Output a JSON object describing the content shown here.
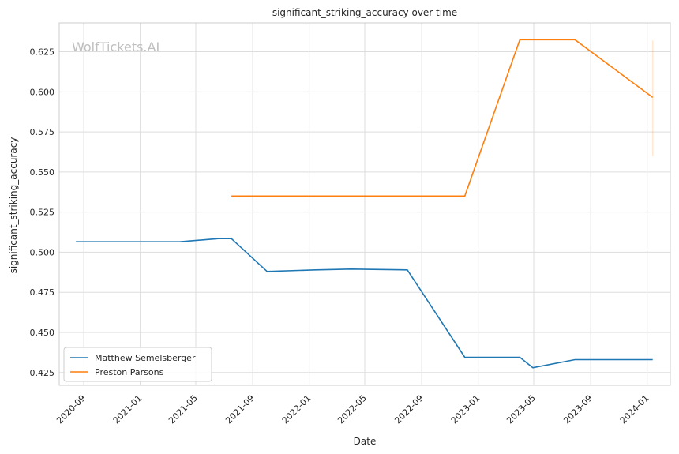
{
  "watermark": "WolfTickets.AI",
  "chart_data": {
    "type": "line",
    "title": "significant_striking_accuracy over time",
    "xlabel": "Date",
    "ylabel": "significant_striking_accuracy",
    "x_range": [
      "2020-07-10",
      "2024-02-20"
    ],
    "ylim": [
      0.417,
      0.643
    ],
    "x_ticks": [
      "2020-09",
      "2021-01",
      "2021-05",
      "2021-09",
      "2022-01",
      "2022-05",
      "2022-09",
      "2023-01",
      "2023-05",
      "2023-09",
      "2024-01"
    ],
    "y_ticks": [
      0.425,
      0.45,
      0.475,
      0.5,
      0.525,
      0.55,
      0.575,
      0.6,
      0.625
    ],
    "y_tick_labels": [
      "0.425",
      "0.450",
      "0.475",
      "0.500",
      "0.525",
      "0.550",
      "0.575",
      "0.600",
      "0.625"
    ],
    "grid": true,
    "legend_position": "bottom-left",
    "series": [
      {
        "name": "Matthew Semelsberger",
        "color": "#1f77b4",
        "points": [
          [
            "2020-08-15",
            0.5065
          ],
          [
            "2021-03-27",
            0.5065
          ],
          [
            "2021-06-19",
            0.5085
          ],
          [
            "2021-07-17",
            0.5085
          ],
          [
            "2021-10-02",
            0.488
          ],
          [
            "2022-01-15",
            0.489
          ],
          [
            "2022-04-01",
            0.4895
          ],
          [
            "2022-08-01",
            0.489
          ],
          [
            "2022-12-03",
            0.4345
          ],
          [
            "2023-04-01",
            0.4345
          ],
          [
            "2023-04-29",
            0.428
          ],
          [
            "2023-07-29",
            0.433
          ],
          [
            "2024-01-13",
            0.433
          ]
        ]
      },
      {
        "name": "Preston Parsons",
        "color": "#ff7f0e",
        "points": [
          [
            "2021-07-17",
            0.535
          ],
          [
            "2022-12-03",
            0.535
          ],
          [
            "2023-04-01",
            0.6325
          ],
          [
            "2023-07-29",
            0.6325
          ],
          [
            "2024-01-13",
            0.5965
          ]
        ],
        "band": {
          "date": "2024-01-13",
          "low": 0.56,
          "high": 0.632
        }
      }
    ]
  }
}
